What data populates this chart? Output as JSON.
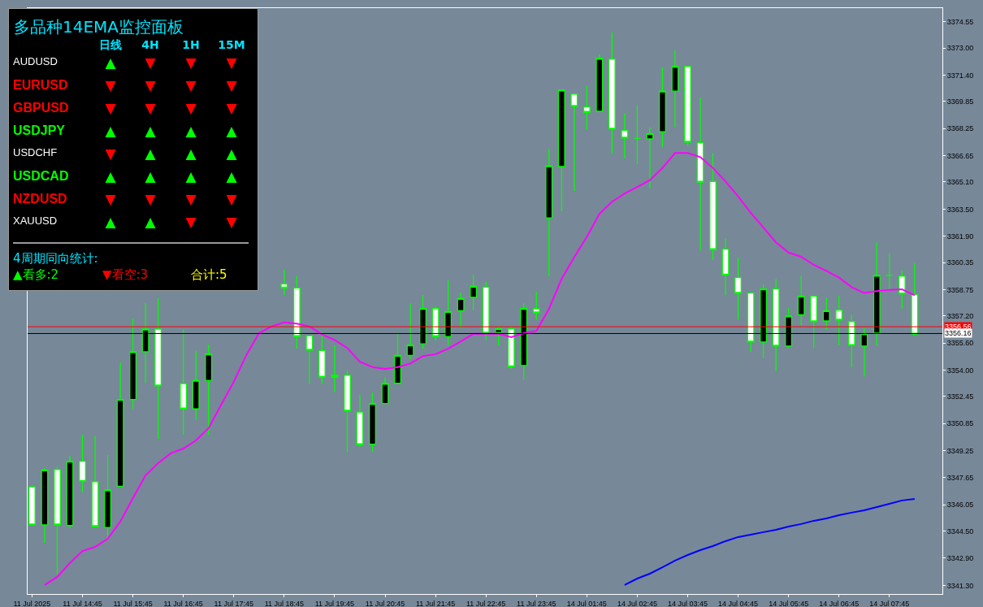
{
  "chart_data": [
    {
      "type": "candlestick",
      "categories": [
        "11 Jul 2025",
        null,
        null,
        null,
        "11 Jul 14:45",
        null,
        null,
        null,
        "11 Jul 15:45",
        null,
        null,
        null,
        "11 Jul 16:45",
        null,
        null,
        null,
        "11 Jul 17:45",
        null,
        null,
        null,
        "11 Jul 18:45",
        null,
        null,
        null,
        "11 Jul 19:45",
        null,
        null,
        null,
        "11 Jul 20:45",
        null,
        null,
        null,
        "11 Jul 21:45",
        null,
        null,
        null,
        "11 Jul 22:45",
        null,
        null,
        null,
        "11 Jul 23:45",
        null,
        null,
        null,
        "14 Jul 01:45",
        null,
        null,
        null,
        "14 Jul 02:45",
        null,
        null,
        null,
        "14 Jul 03:45",
        null,
        null,
        null,
        "14 Jul 04:45",
        null,
        null,
        null,
        "14 Jul 05:45",
        null,
        null,
        null,
        "14 Jul 06:45",
        null,
        null,
        null,
        "14 Jul 07:45",
        null,
        null
      ],
      "ohlc": [
        [
          3347.11,
          3347.17,
          3344.87,
          3344.87
        ],
        [
          3344.87,
          3348.22,
          3343.81,
          3348.11
        ],
        [
          3348.13,
          3348.32,
          3341.94,
          3344.87
        ],
        [
          3344.83,
          3348.94,
          3344.68,
          3348.62
        ],
        [
          3348.62,
          3350.19,
          3346.8,
          3347.44
        ],
        [
          3347.41,
          3350.11,
          3344.77,
          3344.77
        ],
        [
          3344.72,
          3348.99,
          3344.05,
          3346.93
        ],
        [
          3347.15,
          3354.46,
          3347.15,
          3352.27
        ],
        [
          3352.27,
          3357.06,
          3351.72,
          3355.08
        ],
        [
          3355.08,
          3357.97,
          3353.22,
          3356.42
        ],
        [
          3356.42,
          3358.26,
          3349.95,
          3353.07
        ],
        null,
        [
          3353.2,
          3356.42,
          3350.19,
          3351.71
        ],
        [
          3351.71,
          3355.14,
          3351.07,
          3353.39
        ],
        [
          3353.39,
          3355.5,
          3350.19,
          3354.95
        ],
        null,
        null,
        null,
        null,
        null,
        [
          3359.09,
          3359.92,
          3358.44,
          3358.85
        ],
        [
          3358.85,
          3359.57,
          3355.27,
          3355.98
        ],
        [
          3356.03,
          3356.03,
          3353.18,
          3355.18
        ],
        [
          3355.16,
          3356.27,
          3353.18,
          3353.58
        ],
        [
          3353.58,
          3355.46,
          3352.7,
          3353.7
        ],
        [
          3353.7,
          3353.98,
          3349.15,
          3351.58
        ],
        [
          3351.52,
          3352.54,
          3349.47,
          3349.6
        ],
        [
          3349.63,
          3352.67,
          3349.18,
          3352.03
        ],
        [
          3352.03,
          3353.55,
          3352.03,
          3353.22
        ],
        [
          3353.22,
          3356.22,
          3353.22,
          3354.87
        ],
        [
          3354.87,
          3357.94,
          3354.66,
          3355.48
        ],
        [
          3355.55,
          3358.42,
          3355.26,
          3357.64
        ],
        [
          3357.64,
          3357.78,
          3355.74,
          3355.98
        ],
        [
          3355.98,
          3359.3,
          3355.46,
          3357.46
        ],
        [
          3357.51,
          3358.58,
          3356.47,
          3358.23
        ],
        [
          3358.29,
          3359.62,
          3357.54,
          3358.95
        ],
        [
          3358.9,
          3359.22,
          3355.79,
          3356.18
        ],
        [
          3356.22,
          3356.58,
          3355.46,
          3356.44
        ],
        [
          3356.44,
          3356.53,
          3354.08,
          3354.2
        ],
        [
          3354.27,
          3357.94,
          3353.44,
          3357.64
        ],
        [
          3357.62,
          3358.61,
          3356.98,
          3357.38
        ],
        [
          3362.98,
          3367.05,
          3359.54,
          3366.05
        ],
        [
          3366.01,
          3370.53,
          3363.37,
          3370.53
        ],
        [
          3370.29,
          3370.29,
          3364.57,
          3369.56
        ],
        [
          3369.53,
          3370.81,
          3368.2,
          3369.21
        ],
        [
          3369.27,
          3372.64,
          3369.27,
          3372.4
        ],
        [
          3372.35,
          3373.92,
          3366.76,
          3368.22
        ],
        [
          3368.15,
          3369.16,
          3366.49,
          3367.69
        ],
        [
          3367.67,
          3369.64,
          3366.17,
          3367.67
        ],
        [
          3367.64,
          3368.33,
          3364.73,
          3367.96
        ],
        [
          3368.06,
          3371.87,
          3367.18,
          3370.46
        ],
        [
          3370.46,
          3372.87,
          3368.32,
          3371.93
        ],
        [
          3371.93,
          3371.93,
          3367.21,
          3367.45
        ],
        [
          3367.42,
          3370.09,
          3361.06,
          3365.09
        ],
        [
          3365.13,
          3366.81,
          3360.5,
          3361.11
        ],
        [
          3361.14,
          3361.78,
          3358.42,
          3359.62
        ],
        [
          3359.46,
          3360.63,
          3356.99,
          3358.53
        ],
        [
          3358.55,
          3358.55,
          3355.07,
          3355.66
        ],
        [
          3355.66,
          3359.06,
          3354.71,
          3358.79
        ],
        [
          3358.79,
          3359.38,
          3353.94,
          3355.42
        ],
        [
          3355.42,
          3357.66,
          3355.33,
          3357.19
        ],
        [
          3357.27,
          3359.57,
          3356.66,
          3358.37
        ],
        [
          3358.37,
          3358.37,
          3355.31,
          3356.86
        ],
        [
          3356.9,
          3358.29,
          3356.42,
          3357.51
        ],
        [
          3357.54,
          3358.39,
          3355.46,
          3356.95
        ],
        [
          3356.86,
          3357.27,
          3354.18,
          3355.46
        ],
        [
          3355.42,
          3356.53,
          3353.63,
          3356.15
        ],
        [
          3356.18,
          3361.54,
          3355.42,
          3359.59
        ],
        [
          3359.59,
          3360.87,
          3358.74,
          3359.59
        ],
        [
          3359.54,
          3359.86,
          3357.62,
          3358.5
        ],
        [
          3358.45,
          3360.31,
          3356.03,
          3356.13
        ]
      ],
      "series": [
        {
          "type": "line",
          "color": "#ff00ff",
          "values": [
            null,
            3341.32,
            3341.8,
            3342.61,
            3343.33,
            3343.57,
            3344.05,
            3345.06,
            3346.45,
            3347.79,
            3348.51,
            3349.09,
            3349.37,
            3349.85,
            3350.57,
            3351.96,
            3353.31,
            3354.89,
            3356.18,
            3356.58,
            3356.82,
            3356.74,
            3356.58,
            3356.1,
            3355.78,
            3355.31,
            3354.5,
            3354.18,
            3354.07,
            3354.18,
            3354.39,
            3354.83,
            3354.94,
            3355.26,
            3355.7,
            3356.14,
            3356.14,
            3356.14,
            3355.94,
            3356.18,
            3356.31,
            3357.62,
            3359.38,
            3360.66,
            3361.86,
            3363.22,
            3363.94,
            3364.42,
            3364.81,
            3365.21,
            3365.93,
            3366.81,
            3366.81,
            3366.57,
            3365.93,
            3365.13,
            3364.25,
            3363.28,
            3362.42,
            3361.54,
            3360.94,
            3360.69,
            3360.21,
            3359.86,
            3359.46,
            3358.9,
            3358.55,
            3358.66,
            3358.74,
            3358.77,
            3358.42
          ]
        },
        {
          "type": "line",
          "color": "#0000ff",
          "values": [
            null,
            null,
            null,
            null,
            null,
            null,
            null,
            null,
            null,
            null,
            null,
            null,
            null,
            null,
            null,
            null,
            null,
            null,
            null,
            null,
            null,
            null,
            null,
            null,
            null,
            null,
            null,
            null,
            null,
            null,
            null,
            null,
            null,
            null,
            null,
            null,
            null,
            null,
            null,
            null,
            null,
            null,
            null,
            null,
            null,
            null,
            null,
            3341.32,
            3341.7,
            3341.99,
            3342.37,
            3342.76,
            3343.09,
            3343.38,
            3343.62,
            3343.91,
            3344.15,
            3344.29,
            3344.44,
            3344.58,
            3344.77,
            3344.92,
            3345.11,
            3345.25,
            3345.44,
            3345.59,
            3345.73,
            3345.92,
            3346.11,
            3346.31,
            3346.4
          ]
        }
      ],
      "ylim": [
        3340.79,
        3375.36
      ],
      "yticks": [
        {
          "value": 3341.3,
          "label": "3341.30"
        },
        {
          "value": 3342.9,
          "label": "3342.90"
        },
        {
          "value": 3344.5,
          "label": "3344.50"
        },
        3346.05,
        3347.65,
        3349.25,
        3350.85,
        3352.45,
        {
          "value": 3354,
          "label": "3354.00"
        },
        {
          "value": 3355.6,
          "label": "3355.60"
        },
        {
          "value": 3357.2,
          "label": "3357.20"
        },
        3358.75,
        3360.35,
        {
          "value": 3361.9,
          "label": "3361.90"
        },
        {
          "value": 3363.5,
          "label": "3363.50"
        },
        {
          "value": 3365.1,
          "label": "3365.10"
        },
        3366.65,
        3368.25,
        3369.85,
        {
          "value": 3371.4,
          "label": "3371.40"
        },
        {
          "value": 3373,
          "label": "3373.00"
        },
        3374.55
      ],
      "ref_lines": [
        {
          "axis": "y",
          "value": 3356.56,
          "label": "3356.56",
          "color": "#ff0000"
        },
        {
          "axis": "y",
          "value": 3356.16,
          "label": "3356.16",
          "color": "#000000"
        }
      ]
    },
    {
      "type": "other",
      "title": "多品种14EMA监控面板",
      "categories": [
        "日线",
        "4H",
        "1H",
        "15M"
      ],
      "annotations": [
        "AUDUSD",
        "▲",
        "▼",
        "▼",
        "▼",
        "EURUSD",
        "▼",
        "▼",
        "▼",
        "▼",
        "GBPUSD",
        "▼",
        "▼",
        "▼",
        "▼",
        "USDJPY",
        "▲",
        "▲",
        "▲",
        "▲",
        "USDCHF",
        "▼",
        "▲",
        "▲",
        "▲",
        "USDCAD",
        "▲",
        "▲",
        "▲",
        "▲",
        "NZDUSD",
        "▼",
        "▼",
        "▼",
        "▼",
        "XAUUSD",
        "▲",
        "▲",
        "▼",
        "▼",
        "4周期同向统计:",
        "▲看多:2",
        "▼看空:3",
        "合计:5"
      ],
      "colors": [
        "#ffffff",
        "#00ff00",
        "#ff0000",
        "#ff0000",
        "#ff0000",
        "#ff0000",
        "#ff0000",
        "#ff0000",
        "#ff0000",
        "#ff0000",
        "#ff0000",
        "#ff0000",
        "#ff0000",
        "#ff0000",
        "#ff0000",
        "#00ff00",
        "#00ff00",
        "#00ff00",
        "#00ff00",
        "#00ff00",
        "#ffffff",
        "#ff0000",
        "#00ff00",
        "#00ff00",
        "#00ff00",
        "#00ff00",
        "#00ff00",
        "#00ff00",
        "#00ff00",
        "#00ff00",
        "#ff0000",
        "#ff0000",
        "#ff0000",
        "#ff0000",
        "#ff0000",
        "#ffffff",
        "#00ff00",
        "#00ff00",
        "#ff0000",
        "#ff0000",
        "#00e5ff",
        "#00ff00",
        "#ff0000",
        "#ffff00"
      ]
    }
  ]
}
